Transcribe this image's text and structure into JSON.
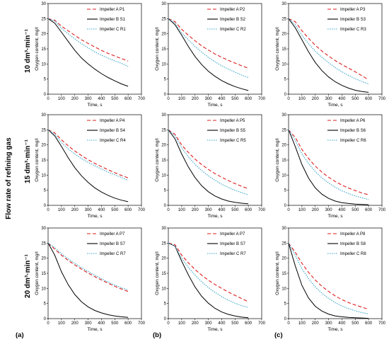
{
  "figure": {
    "side_label": "Flow rate of refining gas",
    "row_labels": [
      "10 dm³·min⁻¹",
      "15 dm³·min⁻¹",
      "20 dm³·min⁻¹"
    ],
    "column_labels": [
      "(a)",
      "(b)",
      "(c)"
    ]
  },
  "style": {
    "series_colors": [
      "#dd1c1c",
      "#000000",
      "#3aa6c8"
    ],
    "series_dash": [
      "5,3",
      "",
      "1.5,1.5"
    ]
  },
  "chart_data": [
    {
      "type": "line",
      "xlabel": "Time, s",
      "ylabel": "Oxygen content, mg/l",
      "xlim": [
        0,
        700
      ],
      "ylim": [
        0,
        30
      ],
      "xticks": [
        0,
        100,
        200,
        300,
        400,
        500,
        600,
        700
      ],
      "yticks": [
        0,
        5,
        10,
        15,
        20,
        25,
        30
      ],
      "legend": "top-right",
      "x": [
        0,
        50,
        100,
        150,
        200,
        250,
        300,
        350,
        400,
        450,
        500,
        550,
        600
      ],
      "series": [
        {
          "name": "Impeller A P1",
          "values": [
            25.0,
            24.5,
            22.5,
            21.0,
            19.5,
            18.0,
            16.8,
            15.6,
            14.5,
            13.5,
            12.6,
            11.8,
            11.0
          ]
        },
        {
          "name": "Impeller B S1",
          "values": [
            25.0,
            23.5,
            20.5,
            17.5,
            14.5,
            12.0,
            10.0,
            8.3,
            6.8,
            5.5,
            4.4,
            3.4,
            2.6
          ]
        },
        {
          "name": "Impeller C R1",
          "values": [
            25.0,
            24.2,
            21.8,
            20.0,
            18.3,
            16.7,
            15.3,
            14.0,
            12.9,
            11.9,
            11.0,
            10.2,
            9.2
          ]
        }
      ]
    },
    {
      "type": "line",
      "xlabel": "Time, s",
      "ylabel": "Oxygen content, mg/l",
      "xlim": [
        0,
        700
      ],
      "ylim": [
        0,
        30
      ],
      "xticks": [
        0,
        100,
        200,
        300,
        400,
        500,
        600,
        700
      ],
      "yticks": [
        0,
        5,
        10,
        15,
        20,
        25,
        30
      ],
      "legend": "top-right",
      "x": [
        0,
        50,
        100,
        150,
        200,
        250,
        300,
        350,
        400,
        450,
        500,
        550,
        600
      ],
      "series": [
        {
          "name": "Impeller A P2",
          "values": [
            25.0,
            24.0,
            21.5,
            19.5,
            17.7,
            16.0,
            14.6,
            13.3,
            12.2,
            11.2,
            10.3,
            9.4,
            8.6
          ]
        },
        {
          "name": "Impeller B S2",
          "values": [
            25.0,
            23.0,
            19.5,
            15.8,
            12.5,
            9.8,
            7.6,
            5.9,
            4.5,
            3.4,
            2.5,
            1.8,
            1.2
          ]
        },
        {
          "name": "Impeller C R2",
          "values": [
            25.0,
            23.5,
            20.3,
            18.0,
            15.8,
            13.9,
            12.2,
            10.7,
            9.4,
            8.3,
            7.3,
            6.3,
            5.5
          ]
        }
      ]
    },
    {
      "type": "line",
      "xlabel": "Time, s",
      "ylabel": "Oxygen content, mg/l",
      "xlim": [
        0,
        700
      ],
      "ylim": [
        0,
        30
      ],
      "xticks": [
        0,
        100,
        200,
        300,
        400,
        500,
        600,
        700
      ],
      "yticks": [
        0,
        5,
        10,
        15,
        20,
        25,
        30
      ],
      "legend": "top-right",
      "x": [
        0,
        50,
        100,
        150,
        200,
        250,
        300,
        350,
        400,
        450,
        500,
        550,
        600
      ],
      "series": [
        {
          "name": "Impeller A P3",
          "values": [
            25.0,
            24.0,
            21.0,
            18.5,
            16.2,
            14.3,
            12.6,
            11.1,
            9.8,
            8.6,
            7.4,
            6.1,
            4.8
          ]
        },
        {
          "name": "Impeller B S3",
          "values": [
            25.0,
            22.0,
            18.0,
            14.0,
            10.5,
            7.8,
            5.7,
            4.1,
            2.9,
            2.0,
            1.3,
            0.9,
            0.6
          ]
        },
        {
          "name": "Impeller C R3",
          "values": [
            25.0,
            23.0,
            19.5,
            16.7,
            14.2,
            12.2,
            10.4,
            8.8,
            7.4,
            6.2,
            5.1,
            4.2,
            3.4
          ]
        }
      ]
    },
    {
      "type": "line",
      "xlabel": "Time, s",
      "ylabel": "Oxygen content, mg/l",
      "xlim": [
        0,
        700
      ],
      "ylim": [
        0,
        30
      ],
      "xticks": [
        0,
        100,
        200,
        300,
        400,
        500,
        600,
        700
      ],
      "yticks": [
        0,
        5,
        10,
        15,
        20,
        25,
        30
      ],
      "legend": "top-right",
      "x": [
        0,
        50,
        100,
        150,
        200,
        250,
        300,
        350,
        400,
        450,
        500,
        550,
        600
      ],
      "series": [
        {
          "name": "Impeller A P4",
          "values": [
            25.0,
            24.0,
            21.7,
            19.7,
            18.0,
            16.5,
            15.1,
            13.9,
            12.8,
            11.8,
            10.8,
            9.9,
            9.1
          ]
        },
        {
          "name": "Impeller B S4",
          "values": [
            25.0,
            23.0,
            19.5,
            15.8,
            12.5,
            9.8,
            7.6,
            5.8,
            4.4,
            3.3,
            2.4,
            1.7,
            1.2
          ]
        },
        {
          "name": "Impeller C R4",
          "values": [
            25.0,
            23.5,
            20.8,
            18.7,
            17.0,
            15.5,
            14.2,
            13.1,
            12.0,
            11.0,
            10.1,
            9.2,
            8.3
          ]
        }
      ]
    },
    {
      "type": "line",
      "xlabel": "Time, s",
      "ylabel": "Oxygen content, mg/l",
      "xlim": [
        0,
        700
      ],
      "ylim": [
        0,
        30
      ],
      "xticks": [
        0,
        100,
        200,
        300,
        400,
        500,
        600,
        700
      ],
      "yticks": [
        0,
        5,
        10,
        15,
        20,
        25,
        30
      ],
      "legend": "top-right",
      "x": [
        0,
        50,
        100,
        150,
        200,
        250,
        300,
        350,
        400,
        450,
        500,
        550,
        600
      ],
      "series": [
        {
          "name": "Impeller A P5",
          "values": [
            25.0,
            23.5,
            20.0,
            17.5,
            15.3,
            13.5,
            11.9,
            10.5,
            9.3,
            8.2,
            7.2,
            6.3,
            5.5
          ]
        },
        {
          "name": "Impeller B S5",
          "values": [
            25.0,
            22.0,
            17.0,
            12.7,
            9.2,
            6.5,
            4.5,
            3.1,
            2.1,
            1.4,
            1.0,
            0.7,
            0.5
          ]
        },
        {
          "name": "Impeller C R5",
          "values": [
            25.0,
            23.0,
            19.0,
            16.1,
            13.6,
            11.5,
            9.8,
            8.3,
            7.0,
            5.9,
            5.0,
            4.2,
            3.5
          ]
        }
      ]
    },
    {
      "type": "line",
      "xlabel": "Time, s",
      "ylabel": "Oxygen content, mg/l",
      "xlim": [
        0,
        700
      ],
      "ylim": [
        0,
        30
      ],
      "xticks": [
        0,
        100,
        200,
        300,
        400,
        500,
        600,
        700
      ],
      "yticks": [
        0,
        5,
        10,
        15,
        20,
        25,
        30
      ],
      "legend": "top-right",
      "x": [
        0,
        50,
        100,
        150,
        200,
        250,
        300,
        350,
        400,
        450,
        500,
        550,
        600
      ],
      "series": [
        {
          "name": "Impeller A P6",
          "values": [
            25.0,
            22.5,
            18.5,
            15.5,
            13.0,
            11.0,
            9.3,
            7.9,
            6.7,
            5.7,
            4.9,
            4.1,
            3.5
          ]
        },
        {
          "name": "Impeller B S6",
          "values": [
            25.0,
            19.5,
            13.5,
            9.0,
            5.8,
            3.7,
            2.3,
            1.4,
            0.9,
            0.6,
            0.4,
            0.3,
            0.2
          ]
        },
        {
          "name": "Impeller C R6",
          "values": [
            25.0,
            21.5,
            17.0,
            13.8,
            11.2,
            9.1,
            7.4,
            6.0,
            4.8,
            3.9,
            3.1,
            2.5,
            1.9
          ]
        }
      ]
    },
    {
      "type": "line",
      "xlabel": "Time, s",
      "ylabel": "Oxygen content, mg/l",
      "xlim": [
        0,
        700
      ],
      "ylim": [
        0,
        30
      ],
      "xticks": [
        0,
        100,
        200,
        300,
        400,
        500,
        600,
        700
      ],
      "yticks": [
        0,
        5,
        10,
        15,
        20,
        25,
        30
      ],
      "legend": "top-right",
      "x": [
        0,
        50,
        100,
        150,
        200,
        250,
        300,
        350,
        400,
        450,
        500,
        550,
        600
      ],
      "series": [
        {
          "name": "Impeller A P7",
          "values": [
            25.0,
            23.0,
            21.0,
            19.3,
            17.8,
            16.4,
            15.1,
            13.9,
            12.8,
            11.7,
            10.7,
            9.8,
            9.0
          ]
        },
        {
          "name": "Impeller B S7",
          "values": [
            25.0,
            21.0,
            15.5,
            11.3,
            8.0,
            5.6,
            3.9,
            2.7,
            1.9,
            1.3,
            0.9,
            0.6,
            0.4
          ]
        },
        {
          "name": "Impeller C R7",
          "values": [
            25.0,
            23.5,
            21.5,
            19.8,
            18.3,
            16.9,
            15.6,
            14.4,
            13.2,
            12.1,
            11.1,
            10.2,
            9.5
          ]
        }
      ]
    },
    {
      "type": "line",
      "xlabel": "Time, s",
      "ylabel": "Oxygen content, mg/l",
      "xlim": [
        0,
        700
      ],
      "ylim": [
        0,
        30
      ],
      "xticks": [
        0,
        100,
        200,
        300,
        400,
        500,
        600,
        700
      ],
      "yticks": [
        0,
        5,
        10,
        15,
        20,
        25,
        30
      ],
      "legend": "top-right",
      "x": [
        0,
        50,
        100,
        150,
        200,
        250,
        300,
        350,
        400,
        450,
        500,
        550,
        600
      ],
      "series": [
        {
          "name": "Impeller A P7",
          "values": [
            25.0,
            24.5,
            21.0,
            18.5,
            16.3,
            14.4,
            12.7,
            11.3,
            10.0,
            8.8,
            7.7,
            6.6,
            5.6
          ]
        },
        {
          "name": "Impeller B S7",
          "values": [
            25.0,
            24.0,
            19.0,
            14.5,
            10.5,
            7.4,
            5.1,
            3.4,
            2.2,
            1.4,
            0.9,
            0.5,
            0.3
          ]
        },
        {
          "name": "Impeller C R7",
          "values": [
            25.0,
            24.0,
            20.0,
            17.0,
            14.4,
            12.2,
            10.3,
            8.7,
            7.3,
            6.1,
            5.1,
            4.3,
            3.7
          ]
        }
      ]
    },
    {
      "type": "line",
      "xlabel": "Time, s",
      "ylabel": "Oxygen content, mg/l",
      "xlim": [
        0,
        700
      ],
      "ylim": [
        0,
        30
      ],
      "xticks": [
        0,
        100,
        200,
        300,
        400,
        500,
        600,
        700
      ],
      "yticks": [
        0,
        5,
        10,
        15,
        20,
        25,
        30
      ],
      "legend": "top-right",
      "x": [
        0,
        50,
        100,
        150,
        200,
        250,
        300,
        350,
        400,
        450,
        500,
        550,
        600
      ],
      "series": [
        {
          "name": "Impeller A P8",
          "values": [
            25.0,
            22.0,
            18.3,
            15.3,
            12.8,
            10.7,
            9.0,
            7.5,
            6.3,
            5.3,
            4.5,
            3.8,
            3.1
          ]
        },
        {
          "name": "Impeller B S8",
          "values": [
            25.0,
            17.5,
            11.0,
            6.8,
            4.1,
            2.5,
            1.5,
            0.9,
            0.6,
            0.4,
            0.3,
            0.2,
            0.1
          ]
        },
        {
          "name": "Impeller C R8",
          "values": [
            25.0,
            21.0,
            16.5,
            13.2,
            10.5,
            8.4,
            6.7,
            5.3,
            4.2,
            3.3,
            2.6,
            2.0,
            1.6
          ]
        }
      ]
    }
  ]
}
